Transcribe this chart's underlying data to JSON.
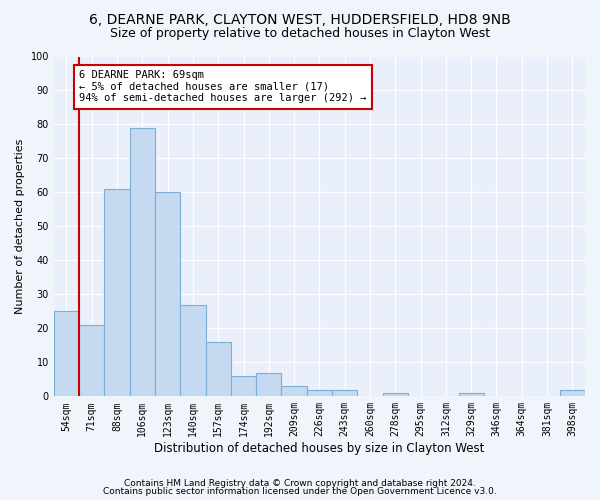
{
  "title1": "6, DEARNE PARK, CLAYTON WEST, HUDDERSFIELD, HD8 9NB",
  "title2": "Size of property relative to detached houses in Clayton West",
  "xlabel": "Distribution of detached houses by size in Clayton West",
  "ylabel": "Number of detached properties",
  "categories": [
    "54sqm",
    "71sqm",
    "88sqm",
    "106sqm",
    "123sqm",
    "140sqm",
    "157sqm",
    "174sqm",
    "192sqm",
    "209sqm",
    "226sqm",
    "243sqm",
    "260sqm",
    "278sqm",
    "295sqm",
    "312sqm",
    "329sqm",
    "346sqm",
    "364sqm",
    "381sqm",
    "398sqm"
  ],
  "values": [
    25,
    21,
    61,
    79,
    60,
    27,
    16,
    6,
    7,
    3,
    2,
    2,
    0,
    1,
    0,
    0,
    1,
    0,
    0,
    0,
    2
  ],
  "bar_color": "#c5d9f0",
  "bar_edge_color": "#7bafd4",
  "annotation_text": "6 DEARNE PARK: 69sqm\n← 5% of detached houses are smaller (17)\n94% of semi-detached houses are larger (292) →",
  "annotation_box_color": "#ffffff",
  "annotation_border_color": "#cc0000",
  "vline_color": "#cc0000",
  "vline_x": 0.5,
  "ylim": [
    0,
    100
  ],
  "yticks": [
    0,
    10,
    20,
    30,
    40,
    50,
    60,
    70,
    80,
    90,
    100
  ],
  "footer1": "Contains HM Land Registry data © Crown copyright and database right 2024.",
  "footer2": "Contains public sector information licensed under the Open Government Licence v3.0.",
  "bg_color": "#f0f4fb",
  "plot_bg_color": "#eaf0fb",
  "grid_color": "#ffffff",
  "title1_fontsize": 10,
  "title2_fontsize": 9,
  "xlabel_fontsize": 8.5,
  "ylabel_fontsize": 8,
  "tick_fontsize": 7,
  "annotation_fontsize": 7.5,
  "footer_fontsize": 6.5
}
